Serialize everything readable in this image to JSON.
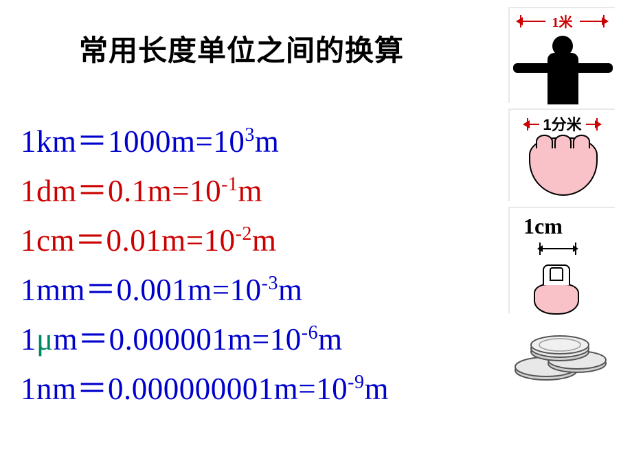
{
  "title": "常用长度单位之间的换算",
  "equations": [
    {
      "unit": "1km",
      "decimal": "1000m",
      "exponent": "3",
      "color": "#0000cc"
    },
    {
      "unit": "1dm",
      "decimal": "0.1m",
      "exponent": "-1",
      "color": "#cc0000"
    },
    {
      "unit": "1cm",
      "decimal": "0.01m",
      "exponent": "-2",
      "color": "#cc0000"
    },
    {
      "unit": "1mm",
      "decimal": "0.001m",
      "exponent": "-3",
      "color": "#0000cc"
    },
    {
      "unit": "1μm",
      "decimal": "0.000001m",
      "exponent": "-6",
      "color": "#0000cc",
      "mu_color": "#008866"
    },
    {
      "unit": "1nm",
      "decimal": "0.000000001m",
      "exponent": "-9",
      "color": "#0000cc"
    }
  ],
  "illustrations": {
    "meter_label": "1米",
    "dm_label": "1分米",
    "cm_label": "1cm"
  },
  "styling": {
    "title_color": "#000000",
    "title_fontsize": 42,
    "eq_fontsize": 45,
    "sup_fontsize": 28,
    "background": "#ffffff",
    "red_accent": "#cc0000",
    "blue_accent": "#0000cc",
    "teal_accent": "#008866",
    "skin_color": "#f9c2c8"
  }
}
